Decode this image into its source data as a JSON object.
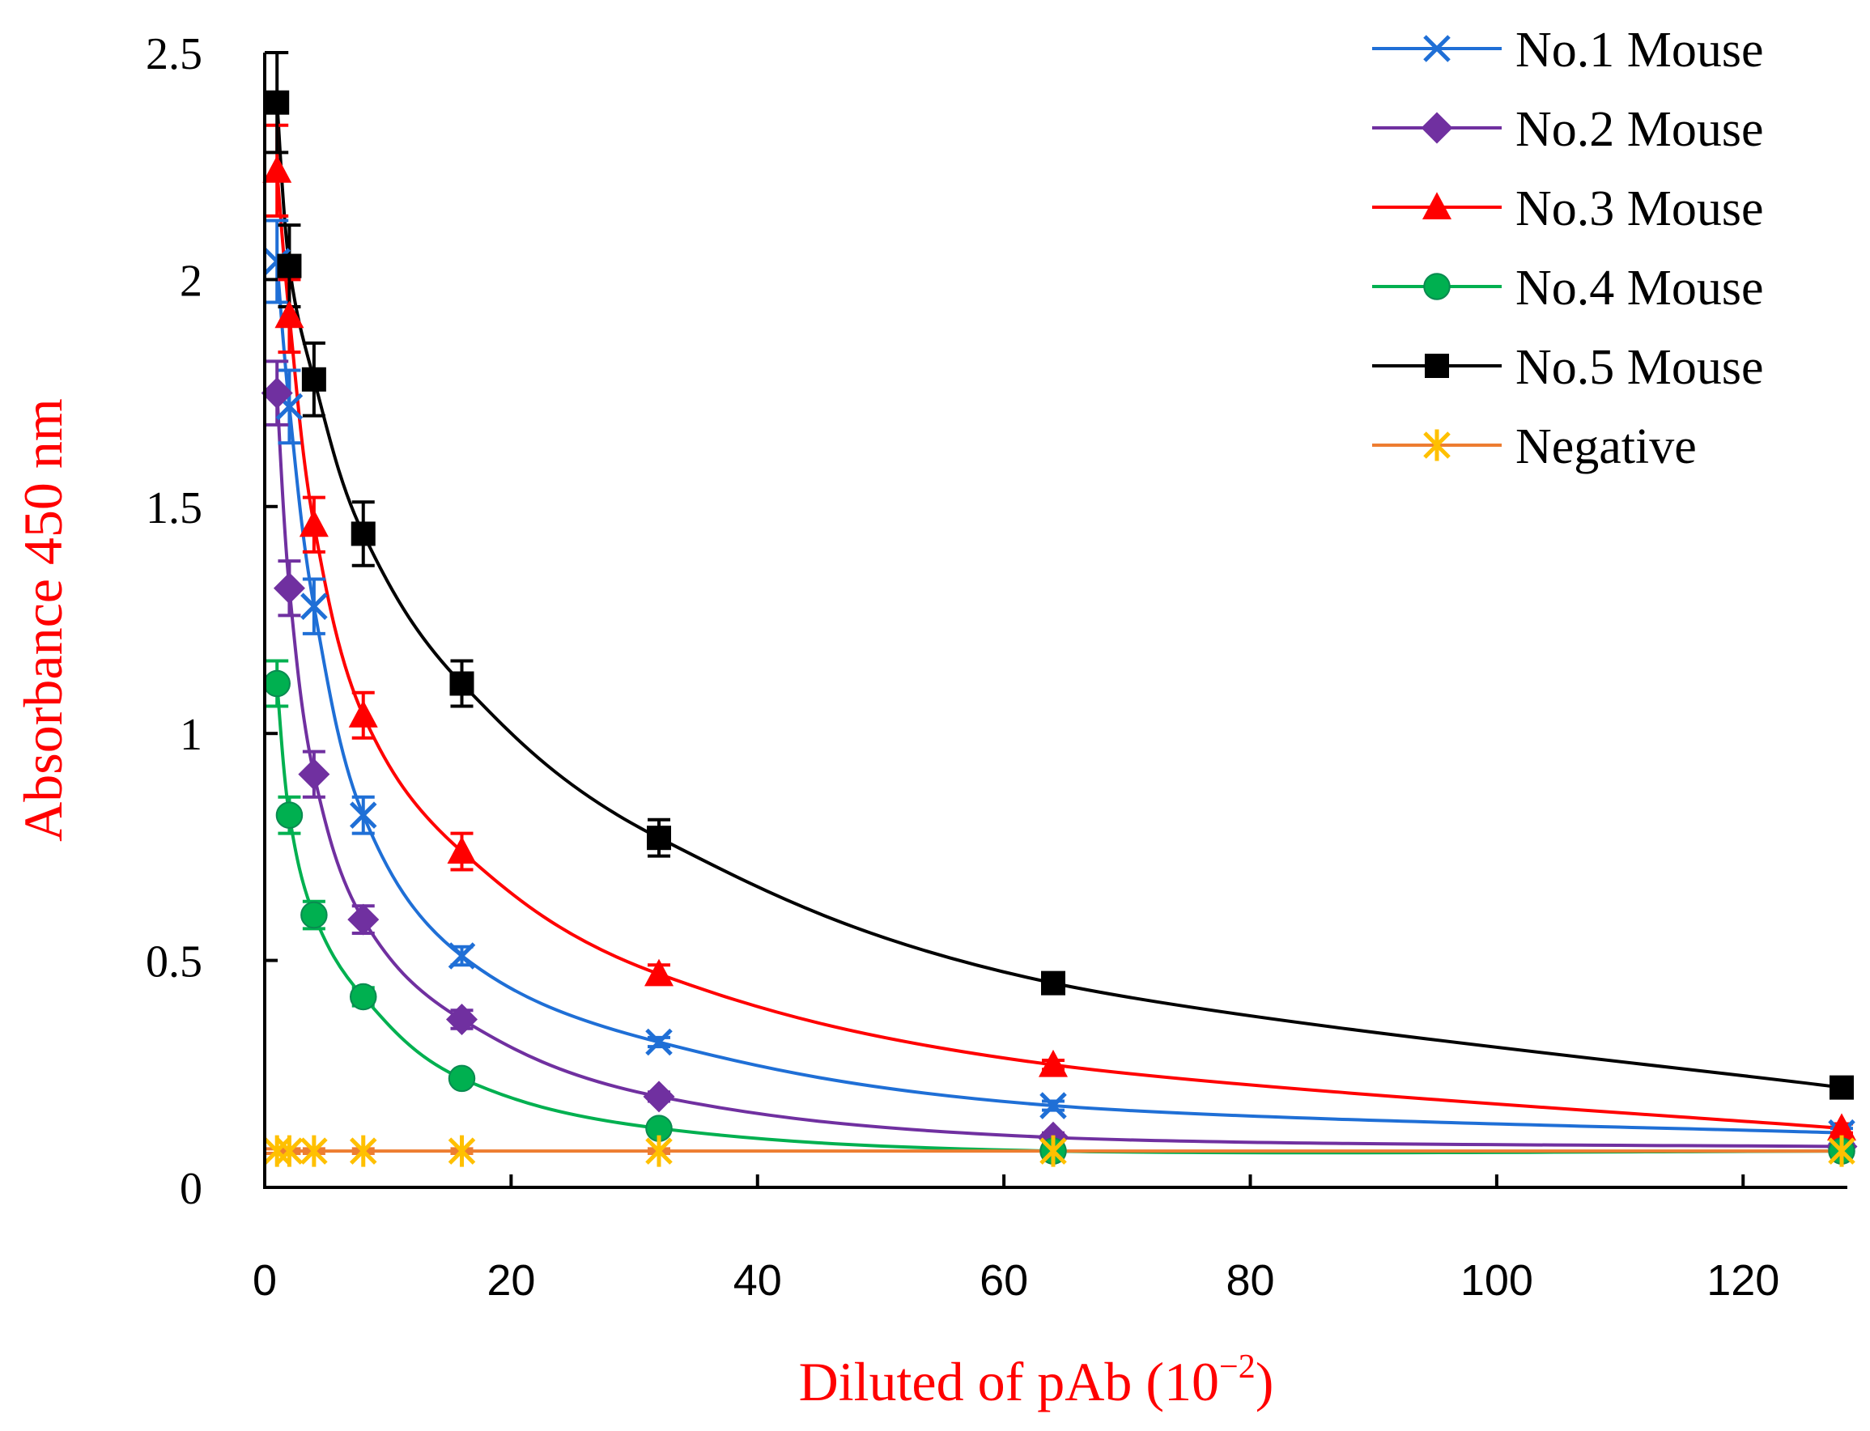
{
  "chart_data": {
    "type": "line",
    "title": "",
    "xlabel_main": "Diluted of pAb (10",
    "xlabel_sup": "−2",
    "xlabel_close": ")",
    "ylabel": "Absorbance 450 nm",
    "xlim": [
      0,
      128
    ],
    "ylim": [
      0,
      2.5
    ],
    "xticks": [
      0,
      20,
      40,
      60,
      80,
      100,
      120
    ],
    "yticks": [
      0,
      0.5,
      1,
      1.5,
      2,
      2.5
    ],
    "ytick_labels": [
      "0",
      "0.5",
      "1",
      "1.5",
      "2",
      "2.5"
    ],
    "xtick_labels": [
      "0",
      "20",
      "40",
      "60",
      "80",
      "100",
      "120"
    ],
    "legend_position": "top-right",
    "x": [
      1,
      2,
      4,
      8,
      16,
      32,
      64,
      128
    ],
    "series": [
      {
        "name": "No.1 Mouse",
        "color": "#1f6fd6",
        "marker": "x",
        "values": [
          2.04,
          1.72,
          1.28,
          0.82,
          0.51,
          0.32,
          0.18,
          0.12
        ],
        "errors": [
          0.09,
          0.08,
          0.06,
          0.04,
          0.02,
          0.01,
          0.01,
          0.01
        ]
      },
      {
        "name": "No.2 Mouse",
        "color": "#7030a0",
        "marker": "diamond",
        "values": [
          1.75,
          1.32,
          0.91,
          0.59,
          0.37,
          0.2,
          0.11,
          0.09
        ],
        "errors": [
          0.07,
          0.06,
          0.05,
          0.03,
          0.02,
          0.01,
          0.01,
          0.01
        ]
      },
      {
        "name": "No.3 Mouse",
        "color": "#ff0000",
        "marker": "triangle",
        "values": [
          2.24,
          1.92,
          1.46,
          1.04,
          0.74,
          0.47,
          0.27,
          0.13
        ],
        "errors": [
          0.1,
          0.08,
          0.06,
          0.05,
          0.04,
          0.02,
          0.01,
          0.01
        ]
      },
      {
        "name": "No.4 Mouse",
        "color": "#00b050",
        "marker": "circle",
        "values": [
          1.11,
          0.82,
          0.6,
          0.42,
          0.24,
          0.13,
          0.08,
          0.08
        ],
        "errors": [
          0.05,
          0.04,
          0.03,
          0.02,
          0.01,
          0.01,
          0.01,
          0.01
        ]
      },
      {
        "name": "No.5 Mouse",
        "color": "#000000",
        "marker": "square",
        "values": [
          2.39,
          2.03,
          1.78,
          1.44,
          1.11,
          0.77,
          0.45,
          0.22
        ],
        "errors": [
          0.11,
          0.09,
          0.08,
          0.07,
          0.05,
          0.04,
          0.02,
          0.02
        ]
      },
      {
        "name": "Negative",
        "color": "#ed7d31",
        "marker": "asterisk",
        "marker_color": "#ffc000",
        "values": [
          0.08,
          0.08,
          0.08,
          0.08,
          0.08,
          0.08,
          0.08,
          0.08
        ],
        "errors": [
          0.005,
          0.005,
          0.005,
          0.005,
          0.005,
          0.005,
          0.005,
          0.005
        ]
      }
    ]
  }
}
